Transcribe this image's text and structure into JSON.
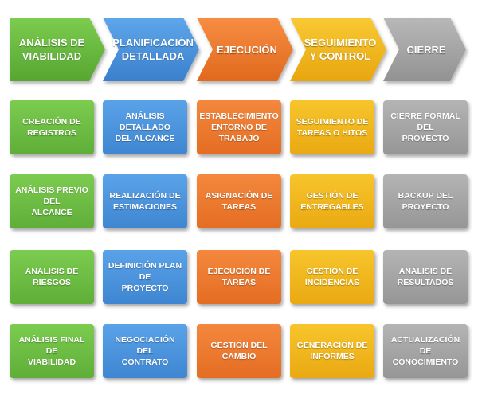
{
  "colors": {
    "green": "#6abd42",
    "blue": "#4a93dd",
    "orange": "#ee7a2d",
    "yellow": "#f2b61e",
    "gray": "#a6a6a6"
  },
  "phases": [
    {
      "title": "ANÁLISIS DE\nVIABILIDAD",
      "color": "green",
      "tasks": [
        "CREACIÓN DE\nREGISTROS",
        "ANÁLISIS PREVIO DEL\nALCANCE",
        "ANÁLISIS DE RIESGOS",
        "ANÁLISIS FINAL DE\nVIABILIDAD"
      ]
    },
    {
      "title": "PLANIFICACIÓN\nDETALLADA",
      "color": "blue",
      "tasks": [
        "ANÁLISIS DETALLADO\nDEL ALCANCE",
        "REALIZACIÓN DE\nESTIMACIONES",
        "DEFINICIÓN PLAN DE\nPROYECTO",
        "NEGOCIACIÓN DEL\nCONTRATO"
      ]
    },
    {
      "title": "EJECUCIÓN",
      "color": "orange",
      "tasks": [
        "ESTABLECIMIENTO\nENTORNO DE\nTRABAJO",
        "ASIGNACIÓN DE\nTAREAS",
        "EJECUCIÓN DE\nTAREAS",
        "GESTIÓN DEL\nCAMBIO"
      ]
    },
    {
      "title": "SEGUIMIENTO\nY CONTROL",
      "color": "yellow",
      "tasks": [
        "SEGUIMIENTO DE\nTAREAS O HITOS",
        "GESTIÓN DE\nENTREGABLES",
        "GESTIÓN DE\nINCIDENCIAS",
        "GENERACIÓN DE\nINFORMES"
      ]
    },
    {
      "title": "CIERRE",
      "color": "gray",
      "tasks": [
        "CIERRE FORMAL DEL\nPROYECTO",
        "BACKUP DEL\nPROYECTO",
        "ANÁLISIS DE\nRESULTADOS",
        "ACTUALIZACIÓN DE\nCONOCIMIENTO"
      ]
    }
  ]
}
